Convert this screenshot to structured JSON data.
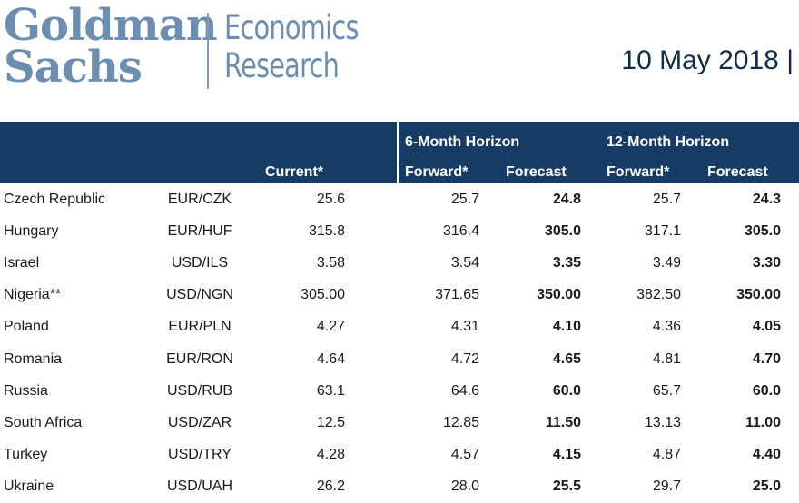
{
  "brand": {
    "logo_line1": "Goldman",
    "logo_line2": "Sachs",
    "division_line1": "Economics",
    "division_line2": "Research"
  },
  "date": "10 May 2018 |",
  "colors": {
    "header_bg": "#163c66",
    "logo": "#6c8fb1",
    "date_text": "#0d2b4a"
  },
  "table": {
    "group_headers": {
      "six_month": "6-Month Horizon",
      "twelve_month": "12-Month Horizon"
    },
    "column_headers": {
      "current": "Current*",
      "forward_6m": "Forward*",
      "forecast_6m": "Forecast",
      "forward_12m": "Forward*",
      "forecast_12m": "Forecast"
    },
    "rows": [
      {
        "country": "Czech Republic",
        "pair": "EUR/CZK",
        "current": "25.6",
        "forward_6m": "25.7",
        "forecast_6m": "24.8",
        "forward_12m": "25.7",
        "forecast_12m": "24.3"
      },
      {
        "country": "Hungary",
        "pair": "EUR/HUF",
        "current": "315.8",
        "forward_6m": "316.4",
        "forecast_6m": "305.0",
        "forward_12m": "317.1",
        "forecast_12m": "305.0"
      },
      {
        "country": "Israel",
        "pair": "USD/ILS",
        "current": "3.58",
        "forward_6m": "3.54",
        "forecast_6m": "3.35",
        "forward_12m": "3.49",
        "forecast_12m": "3.30"
      },
      {
        "country": "Nigeria**",
        "pair": "USD/NGN",
        "current": "305.00",
        "forward_6m": "371.65",
        "forecast_6m": "350.00",
        "forward_12m": "382.50",
        "forecast_12m": "350.00"
      },
      {
        "country": "Poland",
        "pair": "EUR/PLN",
        "current": "4.27",
        "forward_6m": "4.31",
        "forecast_6m": "4.10",
        "forward_12m": "4.36",
        "forecast_12m": "4.05"
      },
      {
        "country": "Romania",
        "pair": "EUR/RON",
        "current": "4.64",
        "forward_6m": "4.72",
        "forecast_6m": "4.65",
        "forward_12m": "4.81",
        "forecast_12m": "4.70"
      },
      {
        "country": "Russia",
        "pair": "USD/RUB",
        "current": "63.1",
        "forward_6m": "64.6",
        "forecast_6m": "60.0",
        "forward_12m": "65.7",
        "forecast_12m": "60.0"
      },
      {
        "country": "South Africa",
        "pair": "USD/ZAR",
        "current": "12.5",
        "forward_6m": "12.85",
        "forecast_6m": "11.50",
        "forward_12m": "13.13",
        "forecast_12m": "11.00"
      },
      {
        "country": "Turkey",
        "pair": "USD/TRY",
        "current": "4.28",
        "forward_6m": "4.57",
        "forecast_6m": "4.15",
        "forward_12m": "4.87",
        "forecast_12m": "4.40"
      },
      {
        "country": "Ukraine",
        "pair": "USD/UAH",
        "current": "26.2",
        "forward_6m": "28.0",
        "forecast_6m": "25.5",
        "forward_12m": "29.7",
        "forecast_12m": "25.0"
      }
    ]
  }
}
